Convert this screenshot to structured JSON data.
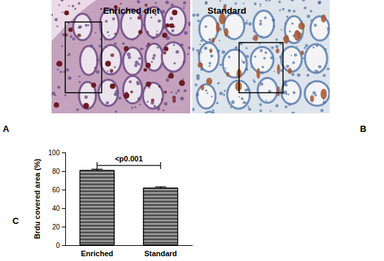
{
  "panels": [
    {
      "label": "A",
      "caption": "Enriched diet"
    },
    {
      "label": "B",
      "caption": "Standard"
    },
    {
      "label": "C"
    }
  ],
  "chart_data": {
    "type": "bar",
    "categories": [
      "Enriched",
      "Standard"
    ],
    "values": [
      81,
      62
    ],
    "errors": [
      1,
      1
    ],
    "color": "#555555",
    "ylabel": "Brdu covered area (%)",
    "ylim": [
      0,
      100
    ],
    "yticks": [
      0,
      20,
      40,
      60,
      80,
      100
    ],
    "grid": false,
    "annotation": "<p0.001"
  }
}
